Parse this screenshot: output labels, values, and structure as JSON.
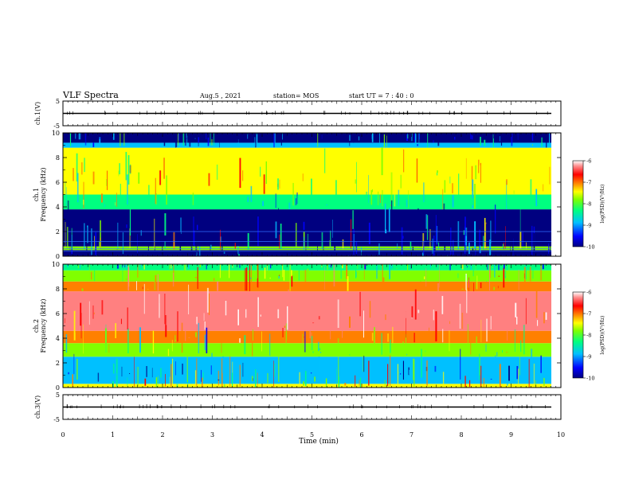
{
  "header": {
    "title": "VLF Spectra",
    "date": "Aug.5  , 2021",
    "station": "station= MOS",
    "start": "start  UT  =   7 : 40 : 0"
  },
  "chart_data": [
    {
      "type": "line",
      "panel": "ch1-waveform",
      "ylabel": "ch.1(V)",
      "ylim": [
        -5,
        5
      ],
      "yticks": [
        "5",
        "-5"
      ],
      "xlim": [
        0,
        10
      ],
      "baseline_value": 0
    },
    {
      "type": "heatmap",
      "panel": "ch1-spectrogram",
      "ylabel": "ch.1\nFrequency (kHz)",
      "ylim": [
        0,
        10
      ],
      "yticks": [
        "0",
        "2",
        "4",
        "6",
        "8",
        "10"
      ],
      "xlim": [
        0,
        10
      ],
      "colorbar": {
        "ticks": [
          "-6",
          "-7",
          "-8",
          "-9",
          "-10"
        ],
        "range": [
          -10,
          -6
        ],
        "label": "log(PSD)(V²/Hz)"
      },
      "bands": [
        {
          "from_khz": 0.0,
          "to_khz": 0.5,
          "level": -10
        },
        {
          "from_khz": 0.5,
          "to_khz": 0.8,
          "level": -8.2
        },
        {
          "from_khz": 0.8,
          "to_khz": 3.8,
          "level": -9.9
        },
        {
          "from_khz": 3.8,
          "to_khz": 5.0,
          "level": -8.5
        },
        {
          "from_khz": 5.0,
          "to_khz": 8.8,
          "level": -7.9
        },
        {
          "from_khz": 8.8,
          "to_khz": 9.2,
          "level": -9.2
        },
        {
          "from_khz": 9.2,
          "to_khz": 10.0,
          "level": -10
        }
      ]
    },
    {
      "type": "heatmap",
      "panel": "ch2-spectrogram",
      "ylabel": "ch.2\nFrequency (kHz)",
      "ylim": [
        0,
        10
      ],
      "yticks": [
        "0",
        "2",
        "4",
        "6",
        "8",
        "10"
      ],
      "xlim": [
        0,
        10
      ],
      "colorbar": {
        "ticks": [
          "-6",
          "-7",
          "-8",
          "-9",
          "-10"
        ],
        "range": [
          -10,
          -6
        ],
        "label": "log(PSD)(V²/Hz)"
      },
      "bands": [
        {
          "from_khz": 0.0,
          "to_khz": 0.3,
          "level": -8.0
        },
        {
          "from_khz": 0.3,
          "to_khz": 2.5,
          "level": -9.3
        },
        {
          "from_khz": 2.5,
          "to_khz": 3.6,
          "level": -8.4
        },
        {
          "from_khz": 3.6,
          "to_khz": 4.6,
          "level": -7.2
        },
        {
          "from_khz": 4.6,
          "to_khz": 7.8,
          "level": -6.5
        },
        {
          "from_khz": 7.8,
          "to_khz": 8.6,
          "level": -7.3
        },
        {
          "from_khz": 8.6,
          "to_khz": 9.5,
          "level": -8.2
        },
        {
          "from_khz": 9.5,
          "to_khz": 10.0,
          "level": -8.8
        }
      ]
    },
    {
      "type": "line",
      "panel": "ch3-waveform",
      "ylabel": "ch.3(V)",
      "ylim": [
        -5,
        5
      ],
      "yticks": [
        "5",
        "-5"
      ],
      "xlim": [
        0,
        10
      ],
      "baseline_value": 0
    }
  ],
  "xaxis": {
    "label": "Time  (min)",
    "ticks": [
      "0",
      "1",
      "2",
      "3",
      "4",
      "5",
      "6",
      "7",
      "8",
      "9",
      "10"
    ]
  },
  "colors": {
    "palette": [
      "#000080",
      "#0000ff",
      "#00c0ff",
      "#00ff80",
      "#80ff00",
      "#ffff00",
      "#ff8000",
      "#ff0000",
      "#ff8080",
      "#ffffff"
    ]
  }
}
